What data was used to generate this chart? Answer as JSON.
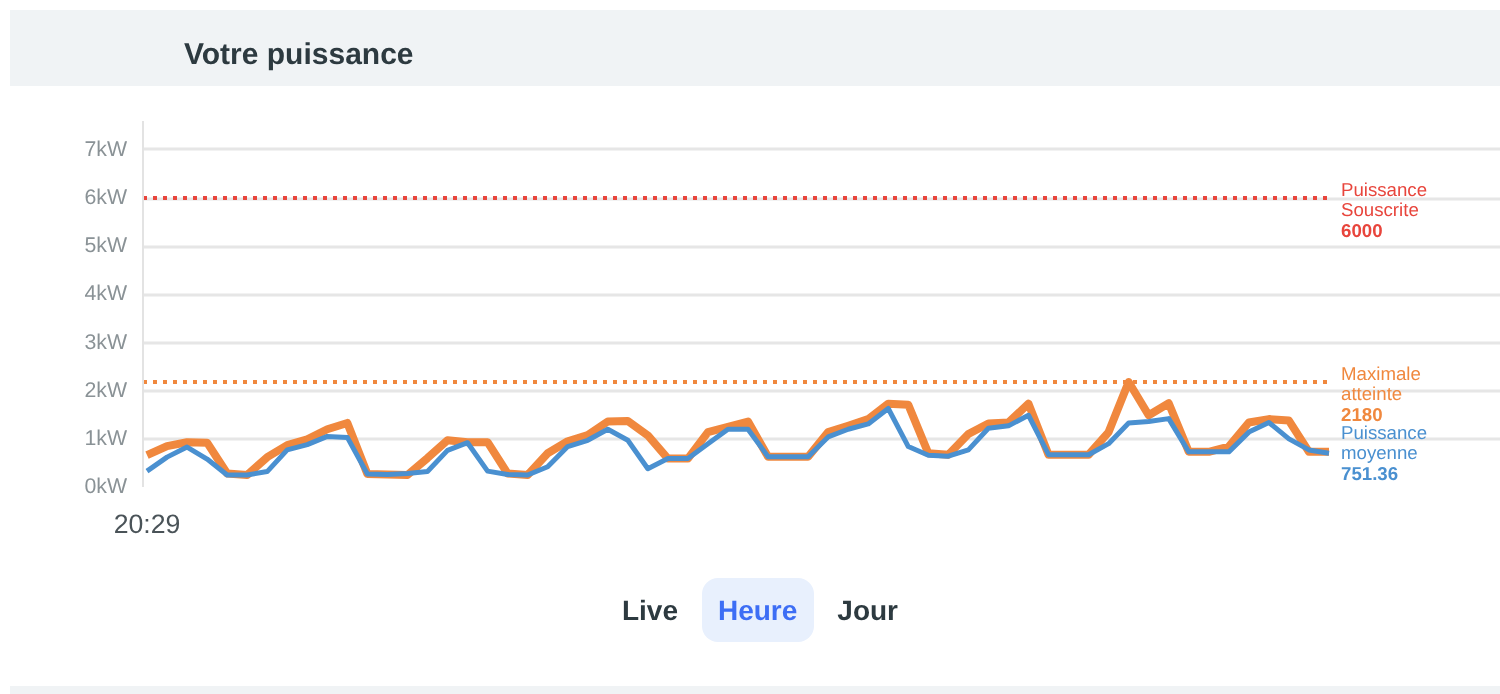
{
  "chart_data": {
    "type": "line",
    "title": "Votre puissance",
    "categories": [
      "20:29",
      null,
      null,
      null,
      null,
      null,
      null,
      null,
      null,
      null,
      null,
      null,
      null,
      null,
      null,
      null,
      null,
      null,
      null,
      null,
      null,
      null,
      null,
      null,
      null,
      null,
      null,
      null,
      null,
      null,
      null,
      null,
      null,
      null,
      null,
      null,
      null,
      null,
      null,
      null,
      null,
      null,
      null,
      null,
      null,
      null,
      null,
      null,
      null,
      null,
      null,
      null,
      null,
      null,
      null,
      null,
      null,
      null,
      null,
      null
    ],
    "series": [
      {
        "color": "#f0883e",
        "values": [
          0.66,
          0.85,
          0.93,
          0.92,
          0.28,
          0.25,
          0.62,
          0.87,
          0.99,
          1.2,
          1.33,
          0.27,
          0.26,
          0.25,
          0.6,
          0.97,
          0.93,
          0.93,
          0.28,
          0.25,
          0.7,
          0.95,
          1.08,
          1.36,
          1.37,
          1.07,
          0.59,
          0.59,
          1.14,
          1.25,
          1.36,
          0.63,
          0.63,
          0.63,
          1.14,
          1.27,
          1.41,
          1.73,
          1.71,
          0.7,
          0.67,
          1.1,
          1.32,
          1.34,
          1.73,
          0.67,
          0.67,
          0.67,
          1.14,
          2.18,
          1.49,
          1.74,
          0.73,
          0.73,
          0.84,
          1.34,
          1.41,
          1.38,
          0.73,
          0.73
        ]
      },
      {
        "name": "Puissance moyenne",
        "color": "#4a90d0",
        "values": [
          0.33,
          0.62,
          0.83,
          0.58,
          0.25,
          0.25,
          0.32,
          0.77,
          0.88,
          1.05,
          1.03,
          0.27,
          0.26,
          0.28,
          0.32,
          0.76,
          0.92,
          0.33,
          0.26,
          0.25,
          0.42,
          0.84,
          0.97,
          1.2,
          0.97,
          0.38,
          0.59,
          0.59,
          0.9,
          1.2,
          1.2,
          0.63,
          0.63,
          0.63,
          1.04,
          1.2,
          1.31,
          1.63,
          0.84,
          0.66,
          0.64,
          0.77,
          1.22,
          1.27,
          1.49,
          0.67,
          0.67,
          0.67,
          0.9,
          1.33,
          1.36,
          1.42,
          0.73,
          0.73,
          0.73,
          1.14,
          1.34,
          1.0,
          0.77,
          0.7
        ]
      }
    ],
    "ylim": [
      0,
      7.6
    ],
    "yticks": [
      {
        "value": 0,
        "label": "0kW"
      },
      {
        "value": 1,
        "label": "1kW"
      },
      {
        "value": 2,
        "label": "2kW"
      },
      {
        "value": 3,
        "label": "3kW"
      },
      {
        "value": 4,
        "label": "4kW"
      },
      {
        "value": 5,
        "label": "5kW"
      },
      {
        "value": 6,
        "label": "6kW"
      },
      {
        "value": 7,
        "label": "7kW"
      }
    ],
    "grid": "y",
    "line_style": "solid",
    "ref_lines": [
      {
        "axis": "y",
        "value": 6,
        "label": "Puissance Souscrite 6000",
        "color": "#e8453c",
        "line_style": "dotted"
      },
      {
        "axis": "y",
        "value": 2.18,
        "label": "Maximale atteinte 2180",
        "color": "#f0883e",
        "line_style": "dotted"
      }
    ],
    "annotations": [
      "751.36",
      "Live",
      "Heure",
      "Jour"
    ]
  }
}
